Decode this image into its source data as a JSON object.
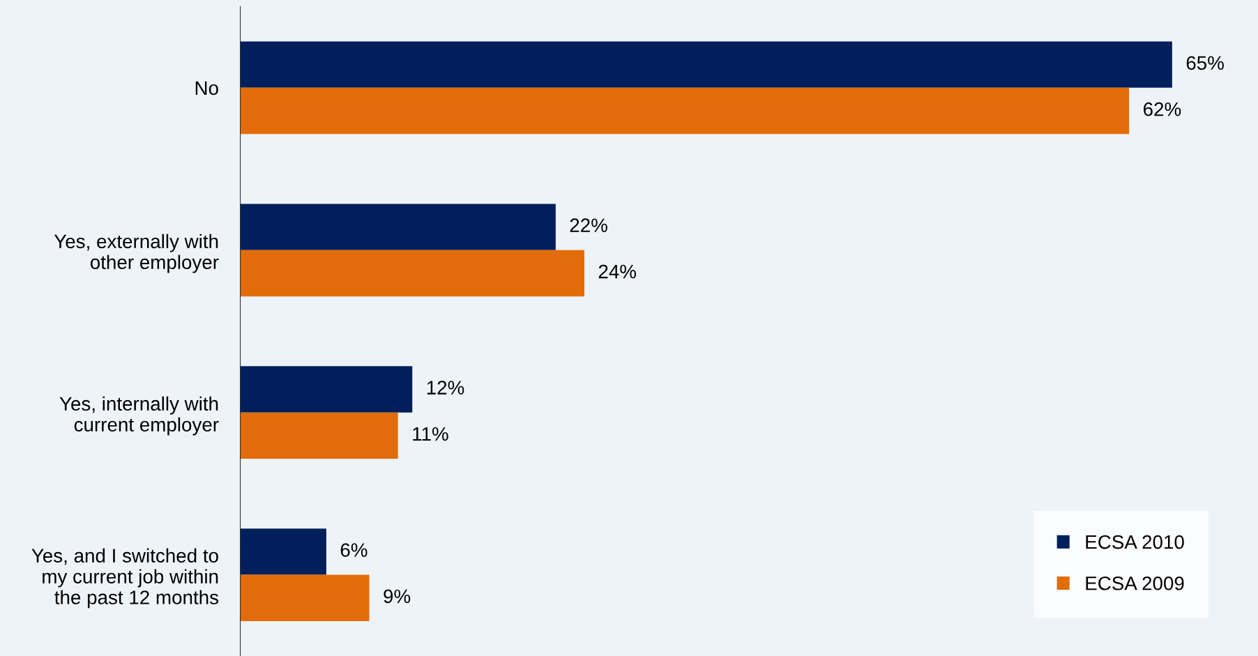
{
  "chart_data": {
    "type": "bar",
    "orientation": "horizontal",
    "categories": [
      "No",
      "Yes, externally with\nother employer",
      "Yes, internally with\ncurrent employer",
      "Yes, and I switched to\nmy current job within\nthe past 12 months"
    ],
    "series": [
      {
        "name": "ECSA 2010",
        "color": "#001f5b",
        "values": [
          65,
          22,
          12,
          6
        ],
        "value_labels": [
          "65%",
          "22%",
          "12%",
          "6%"
        ]
      },
      {
        "name": "ECSA 2009",
        "color": "#e36c0a",
        "values": [
          62,
          24,
          11,
          9
        ],
        "value_labels": [
          "62%",
          "24%",
          "11%",
          "9%"
        ]
      }
    ],
    "legend": "bottom right",
    "grid": false
  }
}
